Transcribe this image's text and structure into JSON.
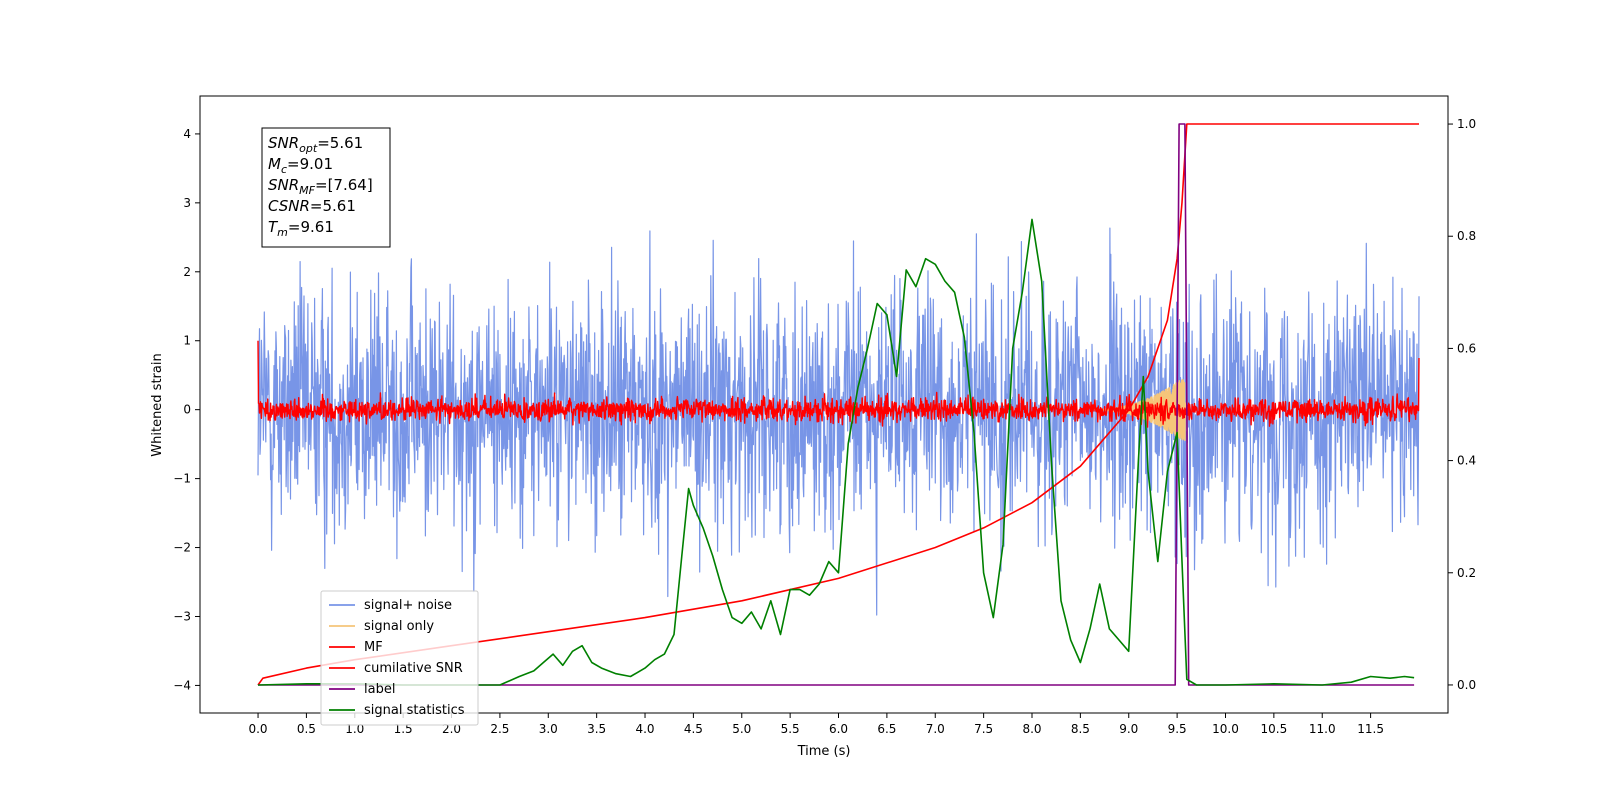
{
  "chart_data": {
    "type": "line",
    "title": "",
    "xlabel": "Time (s)",
    "ylabel": "Whitened strain",
    "y2label": "",
    "xlim": [
      -0.6,
      12.3
    ],
    "ylim": [
      -4.4,
      4.55
    ],
    "y2lim": [
      -0.05,
      1.05
    ],
    "xticks": [
      "0.0",
      "0.5",
      "1.0",
      "1.5",
      "2.0",
      "2.5",
      "3.0",
      "3.5",
      "4.0",
      "4.5",
      "5.0",
      "5.5",
      "6.0",
      "6.5",
      "7.0",
      "7.5",
      "8.0",
      "8.5",
      "9.0",
      "9.5",
      "10.0",
      "10.5",
      "11.0",
      "11.5"
    ],
    "yticks": [
      "4",
      "3",
      "2",
      "1",
      "0",
      "−1",
      "−2",
      "−3",
      "−4"
    ],
    "y2ticks": [
      "1.0",
      "0.8",
      "0.6",
      "0.4",
      "0.2",
      "0.0"
    ],
    "grid": false,
    "legend_position": "lower-left",
    "annotation": {
      "lines": [
        {
          "sym": "SNR",
          "sub": "opt",
          "val": "=5.61"
        },
        {
          "sym": "M",
          "sub": "c",
          "val": "=9.01"
        },
        {
          "sym": "SNR",
          "sub": "MF",
          "val": "=[7.64]"
        },
        {
          "sym": "CSNR",
          "sub": "",
          "val": "=5.61"
        },
        {
          "sym": "T",
          "sub": "m",
          "val": "=9.61"
        }
      ]
    },
    "series": [
      {
        "name": "signal+ noise",
        "color": "#7895e7",
        "axis": "left",
        "kind": "noise",
        "x_range": [
          0,
          12
        ],
        "amplitude": 1.25
      },
      {
        "name": "signal only",
        "color": "#f5c57a",
        "axis": "left",
        "kind": "chirp",
        "x_range": [
          8.6,
          9.6
        ],
        "peak_amplitude": 0.5
      },
      {
        "name": "MF",
        "color": "#ff0000",
        "axis": "left",
        "kind": "noise",
        "x_range": [
          0,
          12
        ],
        "amplitude": 0.12,
        "start_value": 1.0,
        "end_value": 0.75
      },
      {
        "name": "cumilative SNR",
        "color": "#ff0000",
        "axis": "right",
        "x": [
          0,
          0.05,
          0.5,
          1.0,
          2.0,
          3.0,
          4.0,
          5.0,
          6.0,
          7.0,
          7.5,
          8.0,
          8.5,
          9.0,
          9.2,
          9.4,
          9.5,
          9.55,
          9.6,
          12.0
        ],
        "y": [
          0.0,
          0.012,
          0.03,
          0.045,
          0.07,
          0.095,
          0.12,
          0.15,
          0.19,
          0.245,
          0.28,
          0.325,
          0.39,
          0.49,
          0.55,
          0.65,
          0.76,
          0.86,
          1.0,
          1.0
        ]
      },
      {
        "name": "label",
        "color": "#800080",
        "axis": "right",
        "x": [
          0,
          9.48,
          9.52,
          9.58,
          9.62,
          11.95
        ],
        "y": [
          0,
          0,
          1,
          1,
          0,
          0
        ]
      },
      {
        "name": "signal statistics",
        "color": "#008000",
        "axis": "right",
        "x": [
          0,
          0.5,
          1.0,
          1.5,
          2.0,
          2.5,
          2.7,
          2.85,
          2.95,
          3.05,
          3.15,
          3.25,
          3.35,
          3.45,
          3.55,
          3.7,
          3.85,
          4.0,
          4.1,
          4.2,
          4.3,
          4.38,
          4.45,
          4.5,
          4.6,
          4.7,
          4.8,
          4.9,
          5.0,
          5.1,
          5.2,
          5.3,
          5.4,
          5.5,
          5.6,
          5.7,
          5.8,
          5.9,
          6.0,
          6.1,
          6.2,
          6.3,
          6.4,
          6.5,
          6.6,
          6.7,
          6.8,
          6.9,
          7.0,
          7.1,
          7.2,
          7.3,
          7.4,
          7.5,
          7.6,
          7.7,
          7.8,
          7.9,
          8.0,
          8.1,
          8.2,
          8.3,
          8.4,
          8.5,
          8.6,
          8.7,
          8.8,
          8.9,
          9.0,
          9.1,
          9.15,
          9.2,
          9.3,
          9.4,
          9.5,
          9.55,
          9.6,
          9.7,
          10.0,
          10.5,
          11.0,
          11.3,
          11.5,
          11.7,
          11.85,
          11.95
        ],
        "y": [
          0.0,
          0.002,
          0.002,
          0.0,
          0.0,
          0.0,
          0.015,
          0.025,
          0.04,
          0.055,
          0.035,
          0.06,
          0.07,
          0.04,
          0.03,
          0.02,
          0.015,
          0.03,
          0.045,
          0.055,
          0.09,
          0.23,
          0.35,
          0.32,
          0.28,
          0.23,
          0.17,
          0.12,
          0.11,
          0.13,
          0.1,
          0.15,
          0.09,
          0.17,
          0.17,
          0.16,
          0.18,
          0.22,
          0.2,
          0.43,
          0.53,
          0.6,
          0.68,
          0.66,
          0.55,
          0.74,
          0.71,
          0.76,
          0.75,
          0.72,
          0.7,
          0.62,
          0.45,
          0.2,
          0.12,
          0.25,
          0.6,
          0.7,
          0.83,
          0.72,
          0.4,
          0.15,
          0.08,
          0.04,
          0.1,
          0.18,
          0.1,
          0.08,
          0.06,
          0.4,
          0.55,
          0.38,
          0.22,
          0.38,
          0.45,
          0.22,
          0.01,
          0.0,
          0.0,
          0.002,
          0.0,
          0.005,
          0.015,
          0.012,
          0.015,
          0.013
        ]
      }
    ]
  }
}
